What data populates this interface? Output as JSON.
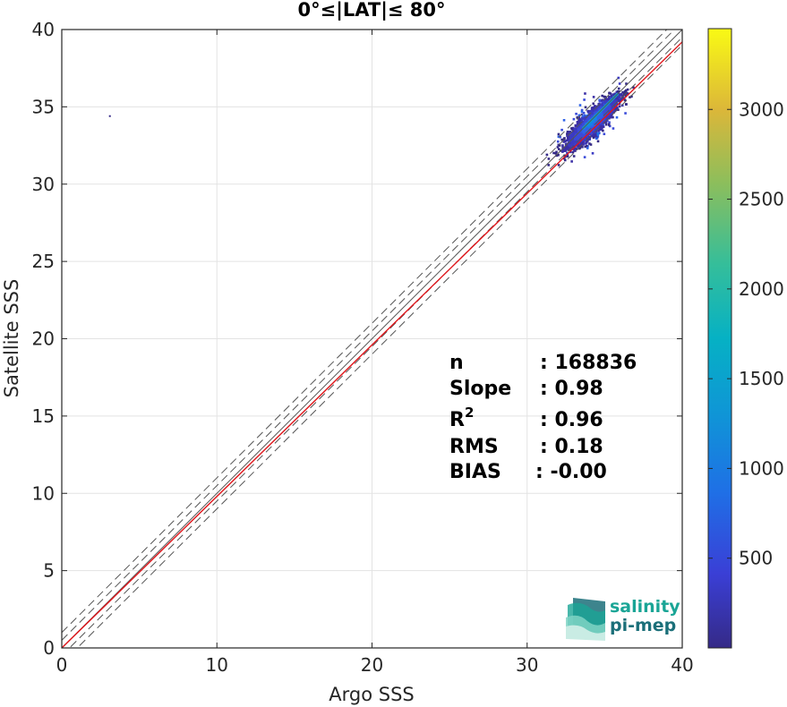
{
  "chart_data": {
    "type": "heatmap",
    "title": "0°≤|LAT|≤ 80°",
    "xlabel": "Argo SSS",
    "ylabel": "Satellite SSS",
    "xlim": [
      0,
      40
    ],
    "ylim": [
      0,
      40
    ],
    "xticks": [
      "0",
      "10",
      "20",
      "30",
      "40"
    ],
    "yticks": [
      "0",
      "5",
      "10",
      "15",
      "20",
      "25",
      "30",
      "35",
      "40"
    ],
    "grid": true,
    "colorbar": {
      "range": [
        0,
        3450
      ],
      "ticks": [
        "500",
        "1000",
        "1500",
        "2000",
        "2500",
        "3000"
      ],
      "colormap": "parula"
    },
    "reference_lines": [
      {
        "name": "1:1",
        "slope": 1,
        "intercept": 0,
        "style": "solid",
        "color": "#555555"
      },
      {
        "name": "+0.5",
        "slope": 1,
        "intercept": 0.5,
        "style": "dashed",
        "color": "#555555"
      },
      {
        "name": "-0.5",
        "slope": 1,
        "intercept": -0.5,
        "style": "dashed",
        "color": "#555555"
      },
      {
        "name": "+1",
        "slope": 1,
        "intercept": 1,
        "style": "dashed",
        "color": "#555555"
      },
      {
        "name": "-1",
        "slope": 1,
        "intercept": -1,
        "style": "dashed",
        "color": "#555555"
      },
      {
        "name": "fit",
        "slope": 0.98,
        "intercept": 0.0,
        "style": "solid",
        "color": "#e0161b"
      }
    ],
    "density_cloud": {
      "center": [
        34.2,
        34.0
      ],
      "range_x": [
        29.3,
        36.9
      ],
      "range_y": [
        29.2,
        36.9
      ],
      "peak_count": 3400
    },
    "outliers": [
      [
        3.1,
        34.4
      ]
    ],
    "stats": {
      "n_label": "n",
      "n_value": ": 168836",
      "slope_label": "Slope",
      "slope_value": ": 0.98",
      "r2_label": "R",
      "r2_sup": "2",
      "r2_value": ": 0.96",
      "rms_label": "RMS",
      "rms_value": ": 0.18",
      "bias_label": "BIAS",
      "bias_value": ": -0.00"
    }
  },
  "logo": {
    "line1": "salinity",
    "line2": "pi-mep",
    "colors": {
      "primary": "#1aa596",
      "secondary": "#1b6f79"
    }
  }
}
